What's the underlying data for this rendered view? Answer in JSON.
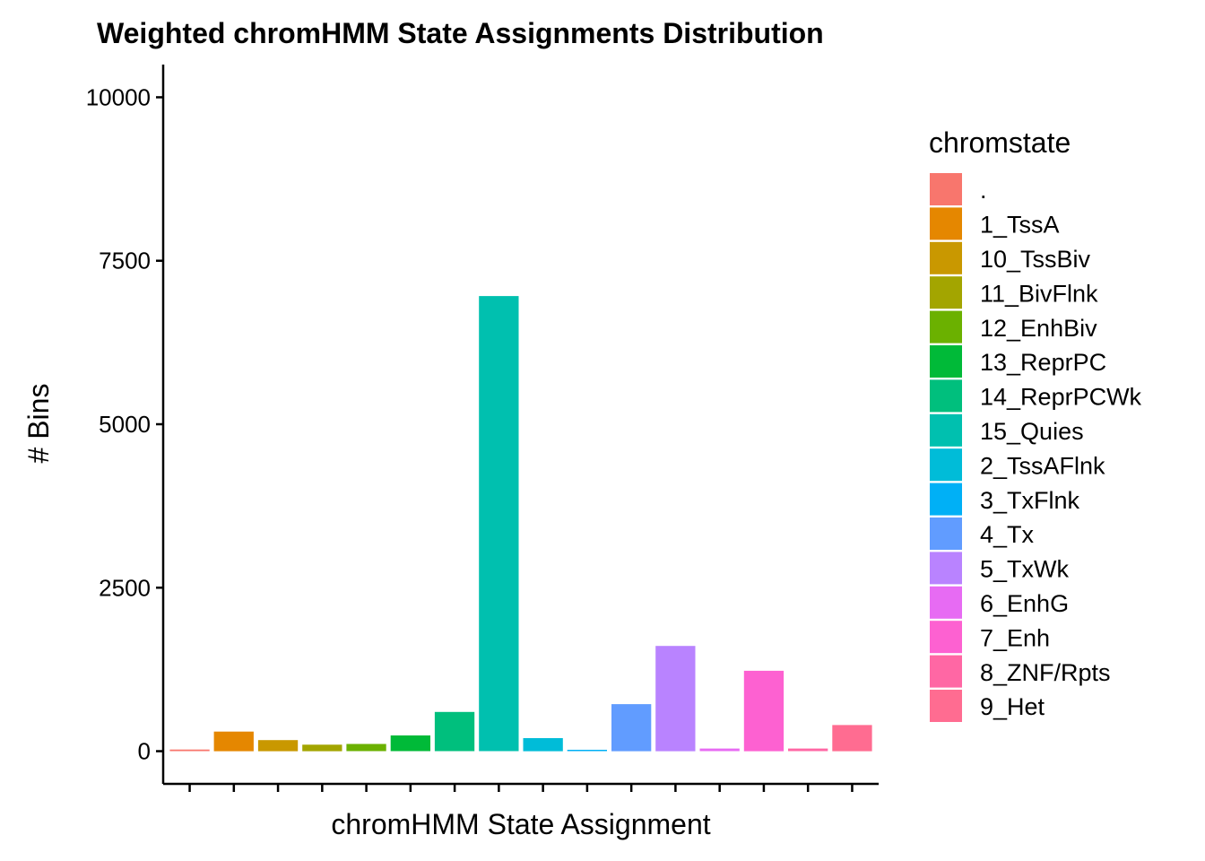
{
  "chart_data": {
    "type": "bar",
    "title": "Weighted chromHMM State Assignments Distribution",
    "xlabel": "chromHMM State Assignment",
    "ylabel": "# Bins",
    "ylim": [
      -500,
      10500
    ],
    "yticks": [
      0,
      2500,
      5000,
      7500,
      10000
    ],
    "grid": false,
    "legend_position": "right",
    "legend_title": "chromstate",
    "categories": [
      ".",
      "1_TssA",
      "10_TssBiv",
      "11_BivFlnk",
      "12_EnhBiv",
      "13_ReprPC",
      "14_ReprPCWk",
      "15_Quies",
      "2_TssAFlnk",
      "3_TxFlnk",
      "4_Tx",
      "5_TxWk",
      "6_EnhG",
      "7_Enh",
      "8_ZNF/Rpts",
      "9_Het"
    ],
    "values": [
      25,
      300,
      170,
      100,
      110,
      240,
      600,
      6960,
      200,
      15,
      720,
      1610,
      40,
      1230,
      40,
      400
    ],
    "colors": [
      "#F8766D",
      "#E58700",
      "#C99800",
      "#A3A500",
      "#6BB100",
      "#00BA38",
      "#00BF7D",
      "#00C0AF",
      "#00BCD8",
      "#00B0F6",
      "#619CFF",
      "#B983FF",
      "#E76BF3",
      "#FD61D1",
      "#FF67A4",
      "#FF6C91"
    ]
  }
}
